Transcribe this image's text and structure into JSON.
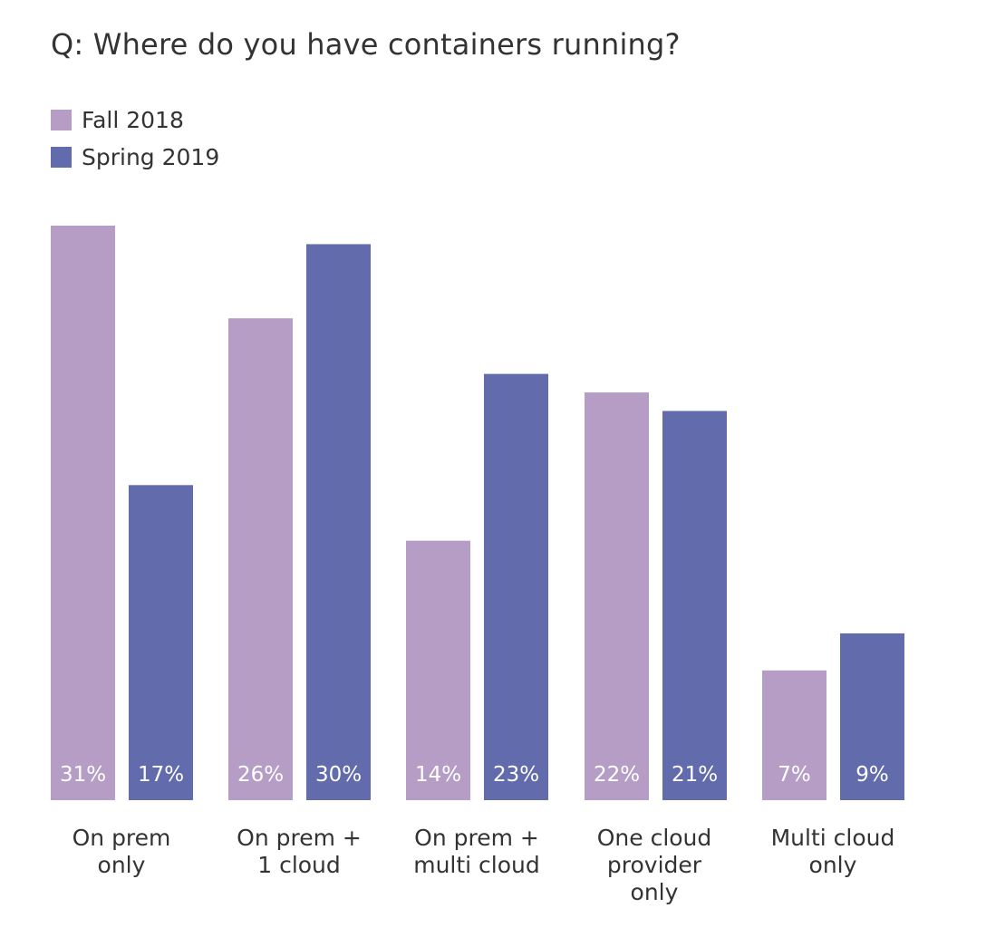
{
  "chart_data": {
    "type": "bar",
    "title": "Q: Where do you have containers running?",
    "categories": [
      "On prem\nonly",
      "On prem +\n1 cloud",
      "On prem +\nmulti cloud",
      "One cloud\nprovider\nonly",
      "Multi cloud\nonly"
    ],
    "series": [
      {
        "name": "Fall 2018",
        "color": "#b59dc6",
        "values": [
          31,
          26,
          14,
          22,
          7
        ],
        "labels": [
          "31%",
          "26%",
          "14%",
          "22%",
          "7%"
        ]
      },
      {
        "name": "Spring 2019",
        "color": "#626bab",
        "values": [
          17,
          30,
          23,
          21,
          9
        ],
        "labels": [
          "17%",
          "30%",
          "23%",
          "21%",
          "9%"
        ]
      }
    ],
    "legend_position": "top-left",
    "grid": false,
    "label_color": "#ffffff"
  }
}
